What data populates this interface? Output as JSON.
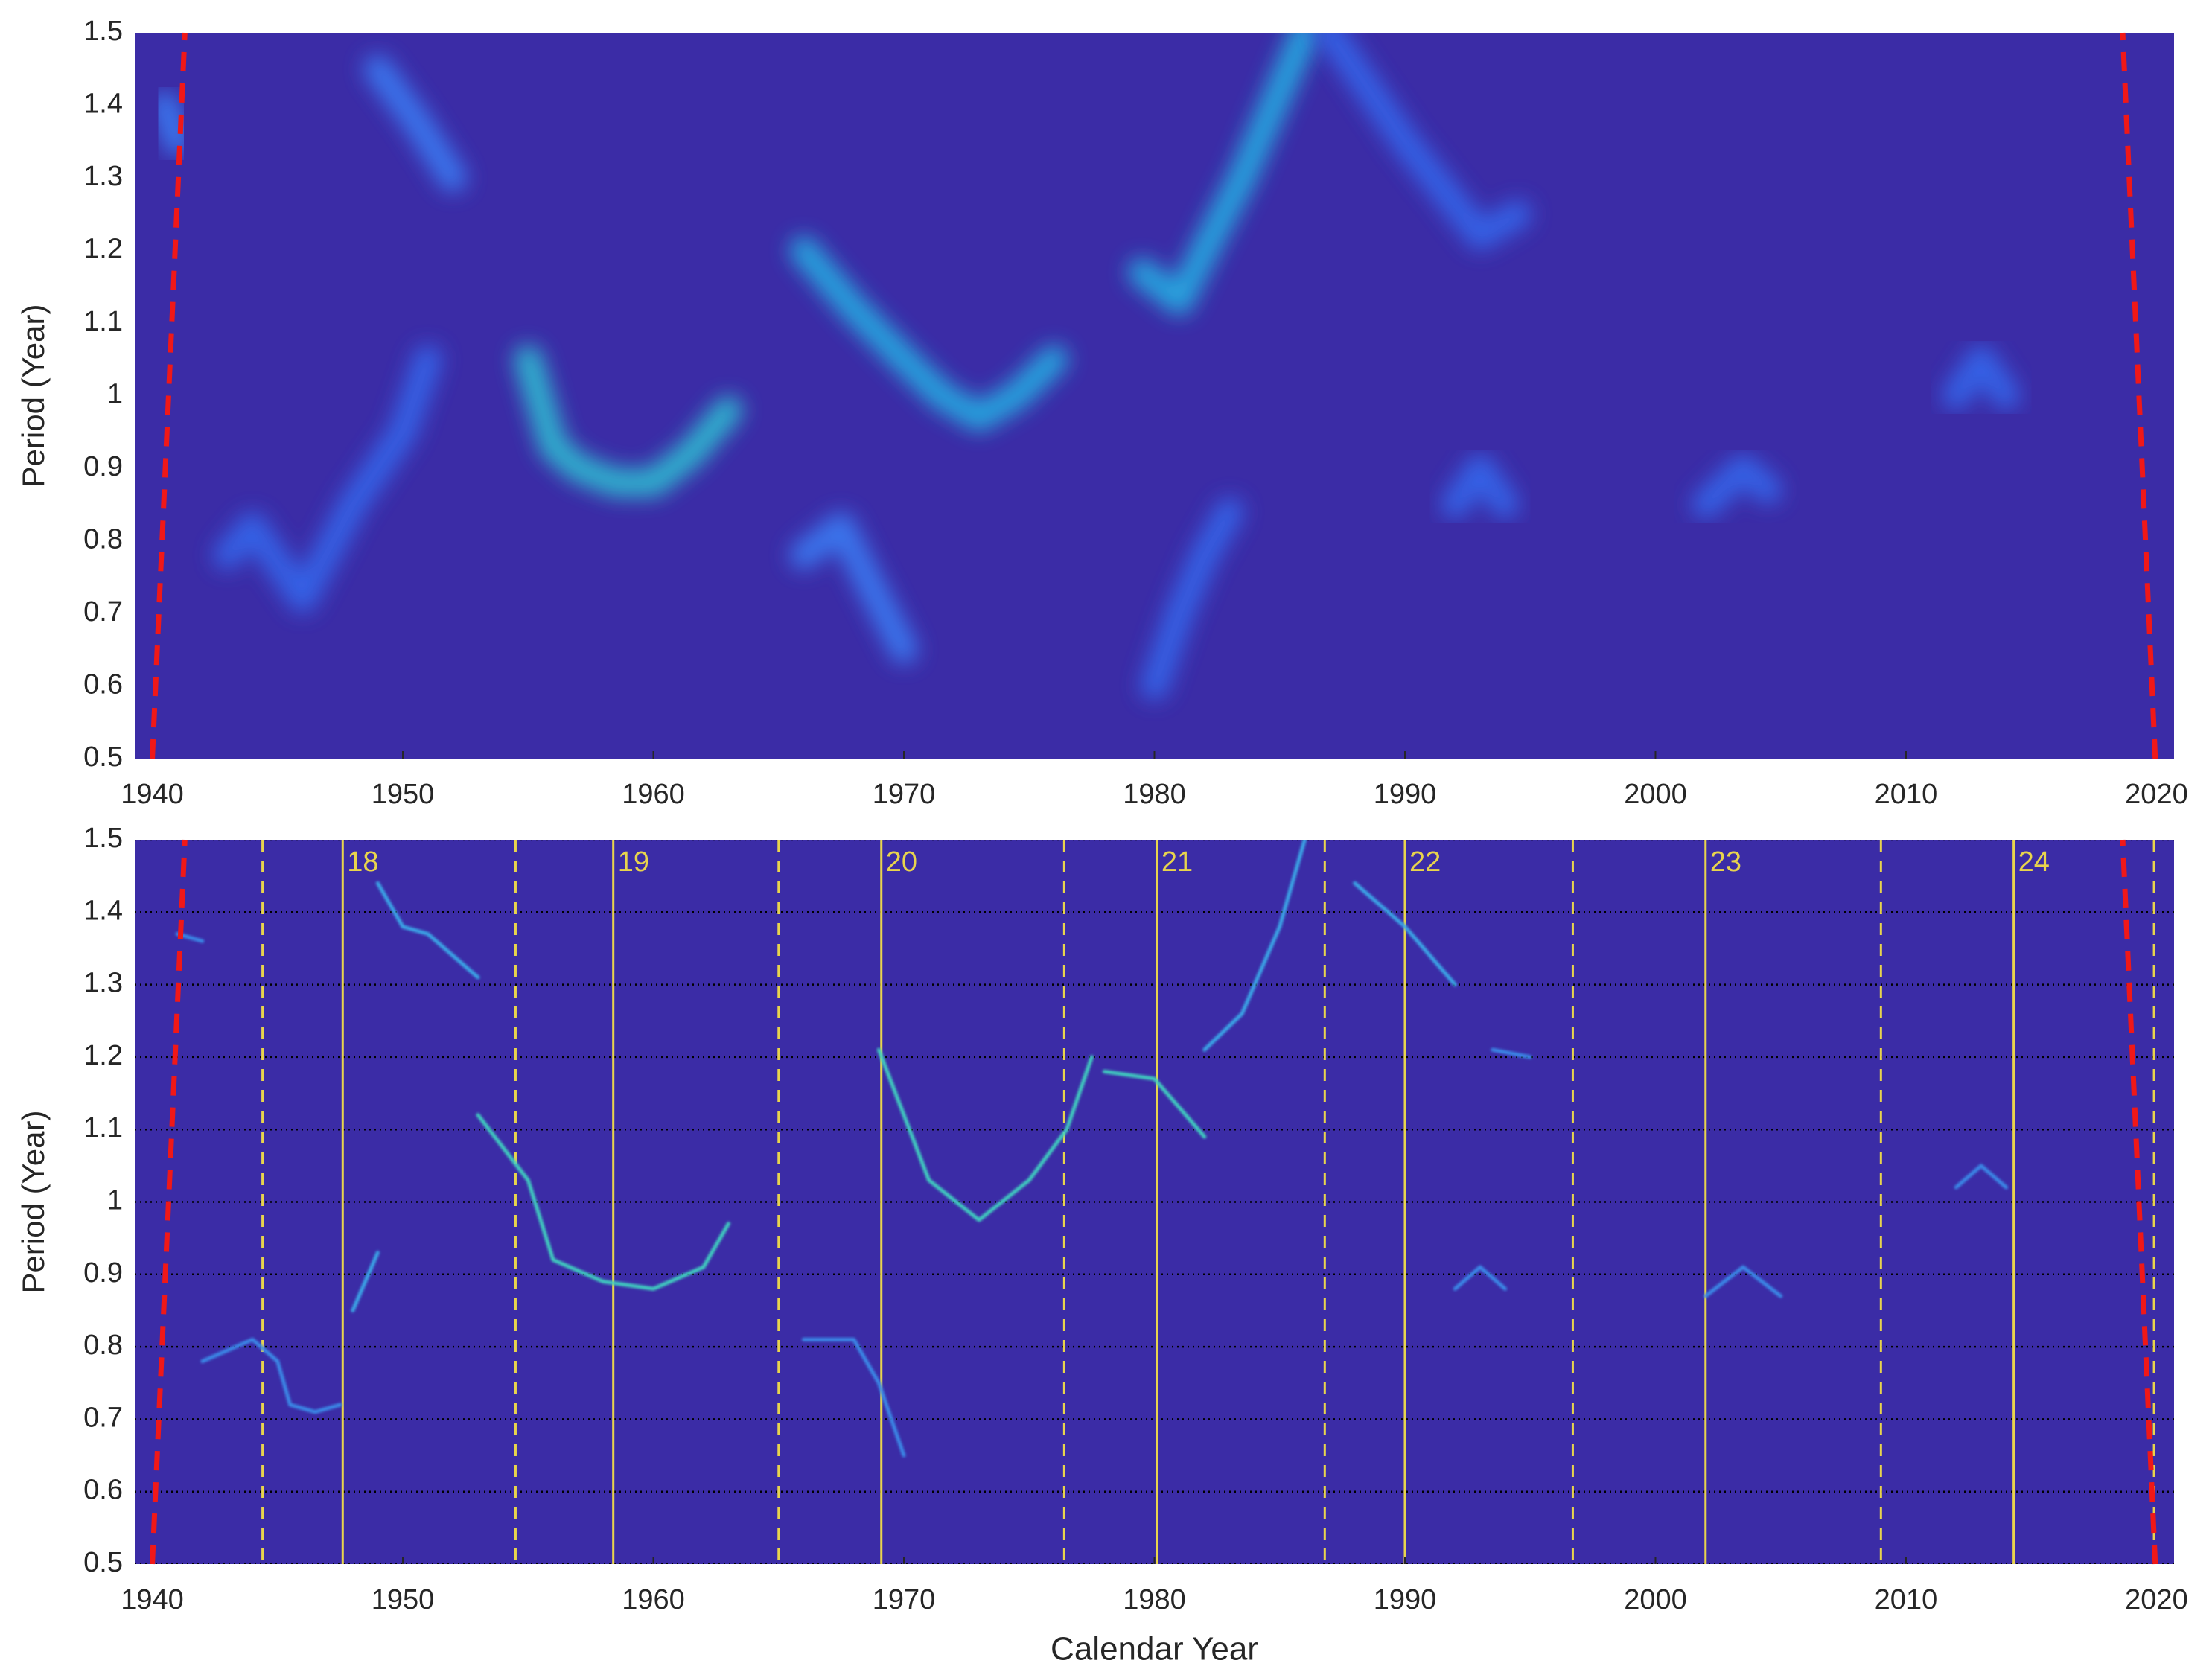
{
  "chart_data": [
    {
      "type": "line",
      "ylabel": "Period (Year)",
      "xlim": [
        1939.3,
        2020.7
      ],
      "ylim": [
        0.5,
        1.5
      ],
      "xticks": [
        1940,
        1950,
        1960,
        1970,
        1980,
        1990,
        2000,
        2010,
        2020
      ],
      "yticks": [
        0.5,
        0.6,
        0.7,
        0.8,
        0.9,
        1,
        1.1,
        1.2,
        1.3,
        1.4,
        1.5
      ],
      "grid": false,
      "background": "#3b2ca6",
      "style": "diffuse",
      "series": [
        {
          "color": "#2fb8d0",
          "x": [
            1955,
            1956,
            1957,
            1958.5,
            1960,
            1961.5,
            1963
          ],
          "values": [
            1.05,
            0.93,
            0.9,
            0.88,
            0.88,
            0.92,
            0.98
          ]
        },
        {
          "color": "#28a8e0",
          "x": [
            1966,
            1968,
            1970,
            1971.5,
            1973,
            1974.5,
            1976
          ],
          "values": [
            1.2,
            1.12,
            1.05,
            1.0,
            0.97,
            1.0,
            1.05
          ]
        },
        {
          "color": "#28a8e0",
          "x": [
            1979.5,
            1981,
            1982,
            1983.5,
            1985,
            1986
          ],
          "values": [
            1.17,
            1.13,
            1.2,
            1.3,
            1.42,
            1.5
          ]
        },
        {
          "color": "#3a78f0",
          "x": [
            1949,
            1950.5,
            1952
          ],
          "values": [
            1.45,
            1.38,
            1.3
          ]
        },
        {
          "color": "#3a78f0",
          "x": [
            1940.5,
            1941
          ],
          "values": [
            1.4,
            1.35
          ]
        },
        {
          "color": "#3464e8",
          "x": [
            1943,
            1944,
            1946,
            1948,
            1950,
            1951
          ],
          "values": [
            0.78,
            0.82,
            0.72,
            0.85,
            0.95,
            1.05
          ]
        },
        {
          "color": "#3a78f0",
          "x": [
            1966,
            1967.5,
            1968.5,
            1970
          ],
          "values": [
            0.78,
            0.82,
            0.75,
            0.65
          ]
        },
        {
          "color": "#3464e8",
          "x": [
            1980,
            1981,
            1982,
            1983
          ],
          "values": [
            0.6,
            0.7,
            0.78,
            0.84
          ]
        },
        {
          "color": "#3464e8",
          "x": [
            1987,
            1990,
            1993,
            1994.5
          ],
          "values": [
            1.5,
            1.35,
            1.22,
            1.25
          ]
        },
        {
          "color": "#3464e8",
          "x": [
            1992,
            1993,
            1994
          ],
          "values": [
            0.85,
            0.9,
            0.85
          ]
        },
        {
          "color": "#3464e8",
          "x": [
            2012,
            2013,
            2014
          ],
          "values": [
            1.0,
            1.05,
            1.0
          ]
        },
        {
          "color": "#3464e8",
          "x": [
            2002,
            2003.5,
            2004.5
          ],
          "values": [
            0.85,
            0.9,
            0.87
          ]
        },
        {
          "color": "#f01818",
          "dashed": true,
          "x": [
            1940.0,
            1941.3
          ],
          "values": [
            0.5,
            1.5
          ]
        },
        {
          "color": "#f01818",
          "dashed": true,
          "x": [
            2019.95,
            2018.65
          ],
          "values": [
            0.5,
            1.5
          ]
        }
      ]
    },
    {
      "type": "line",
      "ylabel": "Period (Year)",
      "xlabel": "Calendar Year",
      "xlim": [
        1939.3,
        2020.7
      ],
      "ylim": [
        0.5,
        1.5
      ],
      "xticks": [
        1940,
        1950,
        1960,
        1970,
        1980,
        1990,
        2000,
        2010,
        2020
      ],
      "yticks": [
        0.5,
        0.6,
        0.7,
        0.8,
        0.9,
        1,
        1.1,
        1.2,
        1.3,
        1.4,
        1.5
      ],
      "grid": true,
      "background": "#3b2ca6",
      "style": "sharp",
      "marker_color": "#e8d44d",
      "cycle_max": [
        {
          "x": 1947.6,
          "label": "18"
        },
        {
          "x": 1958.4,
          "label": "19"
        },
        {
          "x": 1969.1,
          "label": "20"
        },
        {
          "x": 1980.1,
          "label": "21"
        },
        {
          "x": 1990.0,
          "label": "22"
        },
        {
          "x": 2002.0,
          "label": "23"
        },
        {
          "x": 2014.3,
          "label": "24"
        }
      ],
      "cycle_min": [
        1944.4,
        1954.5,
        1965.0,
        1976.4,
        1986.8,
        1996.7,
        2009.0,
        2019.9
      ],
      "series": [
        {
          "color": "#3aa8e8",
          "x": [
            1948,
            1949
          ],
          "values": [
            0.85,
            0.93
          ]
        },
        {
          "color": "#3aa8e8",
          "x": [
            1949,
            1950,
            1951,
            1952,
            1953
          ],
          "values": [
            1.44,
            1.38,
            1.37,
            1.34,
            1.31
          ]
        },
        {
          "color": "#40d0c0",
          "x": [
            1953,
            1955,
            1956,
            1958,
            1960,
            1962,
            1963
          ],
          "values": [
            1.12,
            1.03,
            0.92,
            0.89,
            0.88,
            0.91,
            0.97
          ]
        },
        {
          "color": "#40d0c0",
          "x": [
            1969,
            1971,
            1973,
            1975,
            1976.5,
            1977.5
          ],
          "values": [
            1.21,
            1.03,
            0.975,
            1.03,
            1.1,
            1.2
          ]
        },
        {
          "color": "#40d0c0",
          "x": [
            1978,
            1980,
            1981,
            1982
          ],
          "values": [
            1.18,
            1.17,
            1.13,
            1.09
          ]
        },
        {
          "color": "#3aa8e8",
          "x": [
            1982,
            1983.5,
            1985,
            1986
          ],
          "values": [
            1.21,
            1.26,
            1.38,
            1.5
          ]
        },
        {
          "color": "#3aa8e8",
          "x": [
            1988,
            1990,
            1992
          ],
          "values": [
            1.44,
            1.38,
            1.3
          ]
        },
        {
          "color": "#3a8ae8",
          "x": [
            1993.5,
            1995
          ],
          "values": [
            1.21,
            1.2
          ]
        },
        {
          "color": "#3a8ae8",
          "x": [
            1942,
            1944,
            1945,
            1945.5,
            1946.5,
            1947.5
          ],
          "values": [
            0.78,
            0.81,
            0.78,
            0.72,
            0.71,
            0.72
          ]
        },
        {
          "color": "#3a8ae8",
          "x": [
            1966,
            1968,
            1969,
            1970
          ],
          "values": [
            0.81,
            0.81,
            0.75,
            0.65
          ]
        },
        {
          "color": "#3a8ae8",
          "x": [
            1992,
            1993,
            1994
          ],
          "values": [
            0.88,
            0.91,
            0.88
          ]
        },
        {
          "color": "#3a8ae8",
          "x": [
            2002,
            2003.5,
            2005
          ],
          "values": [
            0.87,
            0.91,
            0.87
          ]
        },
        {
          "color": "#3a8ae8",
          "x": [
            2012,
            2013,
            2014
          ],
          "values": [
            1.02,
            1.05,
            1.02
          ]
        },
        {
          "color": "#3a8ae8",
          "x": [
            1941,
            1942
          ],
          "values": [
            1.37,
            1.36
          ]
        },
        {
          "color": "#f01818",
          "dashed": true,
          "x": [
            1940.0,
            1941.3
          ],
          "values": [
            0.5,
            1.5
          ]
        },
        {
          "color": "#f01818",
          "dashed": true,
          "x": [
            2019.95,
            2018.65
          ],
          "values": [
            0.5,
            1.5
          ]
        }
      ]
    }
  ]
}
